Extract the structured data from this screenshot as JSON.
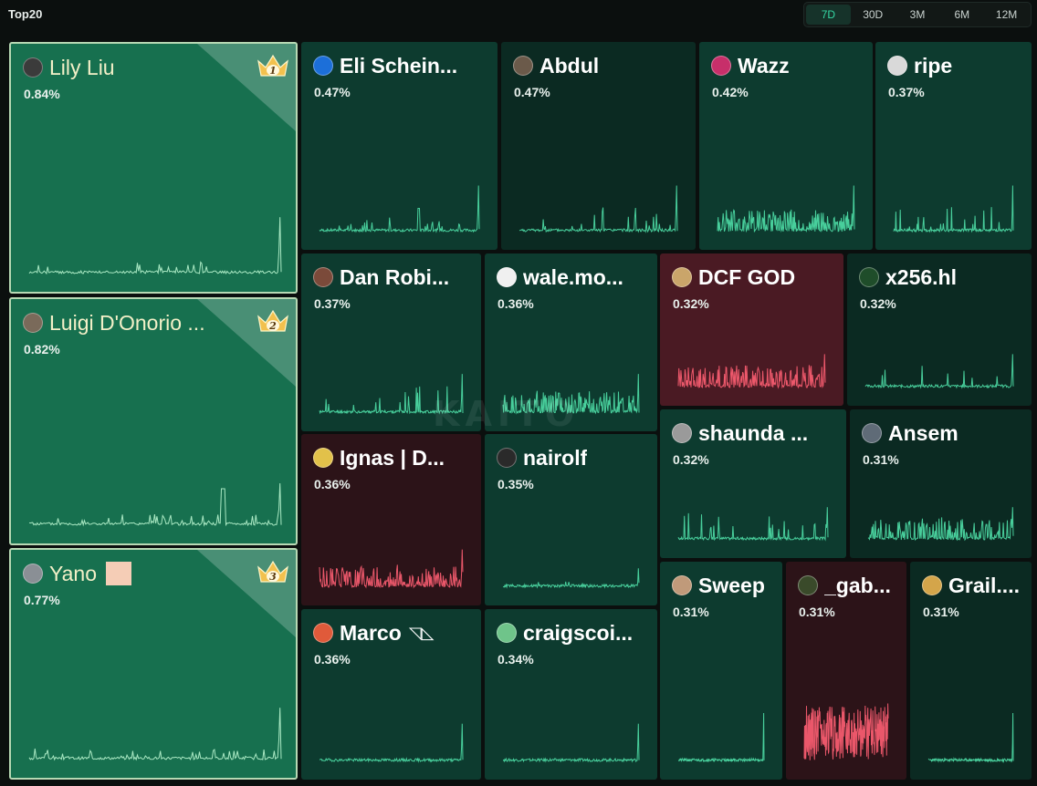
{
  "header": {
    "title": "Top20"
  },
  "time_range": {
    "options": [
      "7D",
      "30D",
      "3M",
      "6M",
      "12M"
    ],
    "selected": "7D"
  },
  "watermark": "KAITO",
  "colors": {
    "positive_line": "#4fe0a8",
    "negative_line": "#ff5f73",
    "top_line": "#b9f5cf",
    "crown_gold": "#f2c14e"
  },
  "tiles": [
    {
      "name": "Lily Liu",
      "pct": "0.84%",
      "rank": "1",
      "style": "top",
      "avatar": "#3b3b3b"
    },
    {
      "name": "Luigi D'Onorio ...",
      "pct": "0.82%",
      "rank": "2",
      "style": "top",
      "avatar": "#7a6a5a"
    },
    {
      "name": "Yano",
      "pct": "0.77%",
      "rank": "3",
      "style": "top",
      "avatar": "#8a8f95",
      "badge": true
    },
    {
      "name": "Eli Schein...",
      "pct": "0.47%",
      "style": "green",
      "avatar": "#1c6fd9"
    },
    {
      "name": "Abdul",
      "pct": "0.47%",
      "style": "dark",
      "avatar": "#6b5a4a"
    },
    {
      "name": "Wazz",
      "pct": "0.42%",
      "style": "green",
      "avatar": "#c72f6a"
    },
    {
      "name": "ripe",
      "pct": "0.37%",
      "style": "green",
      "avatar": "#d9d9d9"
    },
    {
      "name": "Dan Robi...",
      "pct": "0.37%",
      "style": "green",
      "avatar": "#7b4a3a"
    },
    {
      "name": "wale.mo...",
      "pct": "0.36%",
      "style": "green",
      "avatar": "#f0f0f0"
    },
    {
      "name": "DCF GOD",
      "pct": "0.32%",
      "style": "red",
      "avatar": "#caa56a"
    },
    {
      "name": "x256.hl",
      "pct": "0.32%",
      "style": "dark",
      "avatar": "#1f4d2a"
    },
    {
      "name": "Ignas | D...",
      "pct": "0.36%",
      "style": "darkred",
      "avatar": "#e2c14a"
    },
    {
      "name": "nairolf",
      "pct": "0.35%",
      "style": "green",
      "avatar": "#2a2a2a"
    },
    {
      "name": "shaunda ...",
      "pct": "0.32%",
      "style": "green",
      "avatar": "#9a9a9a"
    },
    {
      "name": "Ansem",
      "pct": "0.31%",
      "style": "dark",
      "avatar": "#5f6b77"
    },
    {
      "name": "Marco",
      "pct": "0.36%",
      "style": "green",
      "avatar": "#e05a3a",
      "flag": "◹◺"
    },
    {
      "name": "craigscoi...",
      "pct": "0.34%",
      "style": "green",
      "avatar": "#6fc48a"
    },
    {
      "name": "Sweep",
      "pct": "0.31%",
      "style": "green",
      "avatar": "#c09a7a"
    },
    {
      "name": "_gab...",
      "pct": "0.31%",
      "style": "darkred",
      "avatar": "#3a4a2a"
    },
    {
      "name": "Grail....",
      "pct": "0.31%",
      "style": "dark",
      "avatar": "#d4a54a"
    }
  ]
}
